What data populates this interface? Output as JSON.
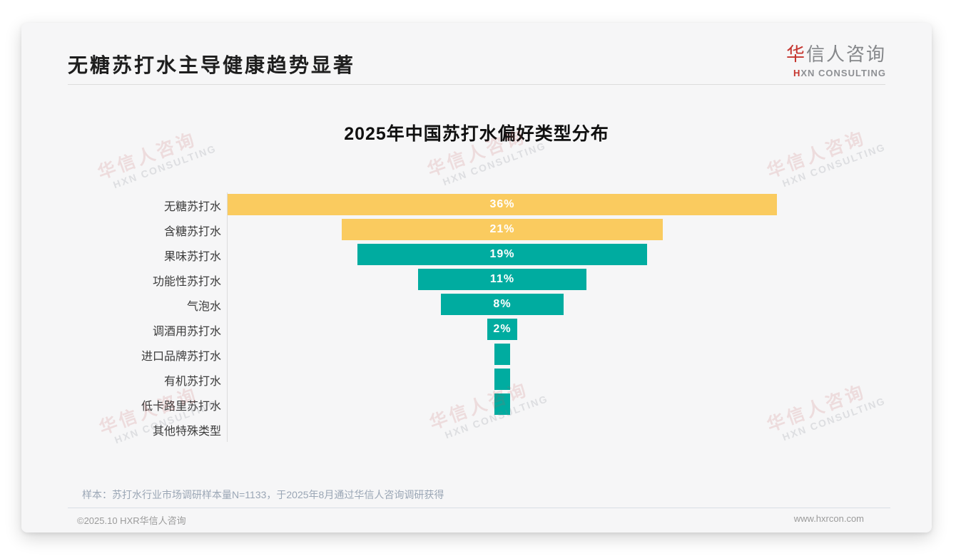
{
  "header": {
    "title": "无糖苏打水主导健康趋势显著",
    "logo": {
      "cn_highlight": "华",
      "cn_rest": "信人咨询",
      "en_first": "H",
      "en_rest": "XN CONSULTING"
    }
  },
  "watermark": {
    "cn": "华信人咨询",
    "en": "HXN CONSULTING"
  },
  "chart_data": {
    "type": "bar",
    "variant": "centered-funnel",
    "title": "2025年中国苏打水偏好类型分布",
    "categories": [
      "无糖苏打水",
      "含糖苏打水",
      "果味苏打水",
      "功能性苏打水",
      "气泡水",
      "调酒用苏打水",
      "进口品牌苏打水",
      "有机苏打水",
      "低卡路里苏打水",
      "其他特殊类型"
    ],
    "values": [
      36,
      21,
      19,
      11,
      8,
      2,
      1,
      1,
      1,
      0
    ],
    "data_labels": [
      "36%",
      "21%",
      "19%",
      "11%",
      "8%",
      "2%",
      "",
      "",
      "",
      ""
    ],
    "unit": "%",
    "xlim": [
      0,
      36
    ],
    "legend": "none",
    "grid": "off",
    "colors": [
      "#FACB5F",
      "#FACB5F",
      "#00ACA0",
      "#00ACA0",
      "#00ACA0",
      "#00ACA0",
      "#00ACA0",
      "#00ACA0",
      "#00ACA0",
      "#00ACA0"
    ]
  },
  "footer": {
    "note": "样本：苏打水行业市场调研样本量N=1133，于2025年8月通过华信人咨询调研获得",
    "copyright": "©2025.10 HXR华信人咨询",
    "website": "www.hxrcon.com"
  },
  "colors": {
    "accent_yellow": "#FACB5F",
    "accent_teal": "#00ACA0",
    "logo_red": "#C5352E",
    "card_bg": "#F6F6F7",
    "text_dark": "#1E1E1E",
    "text_muted": "#9AA6B5"
  }
}
